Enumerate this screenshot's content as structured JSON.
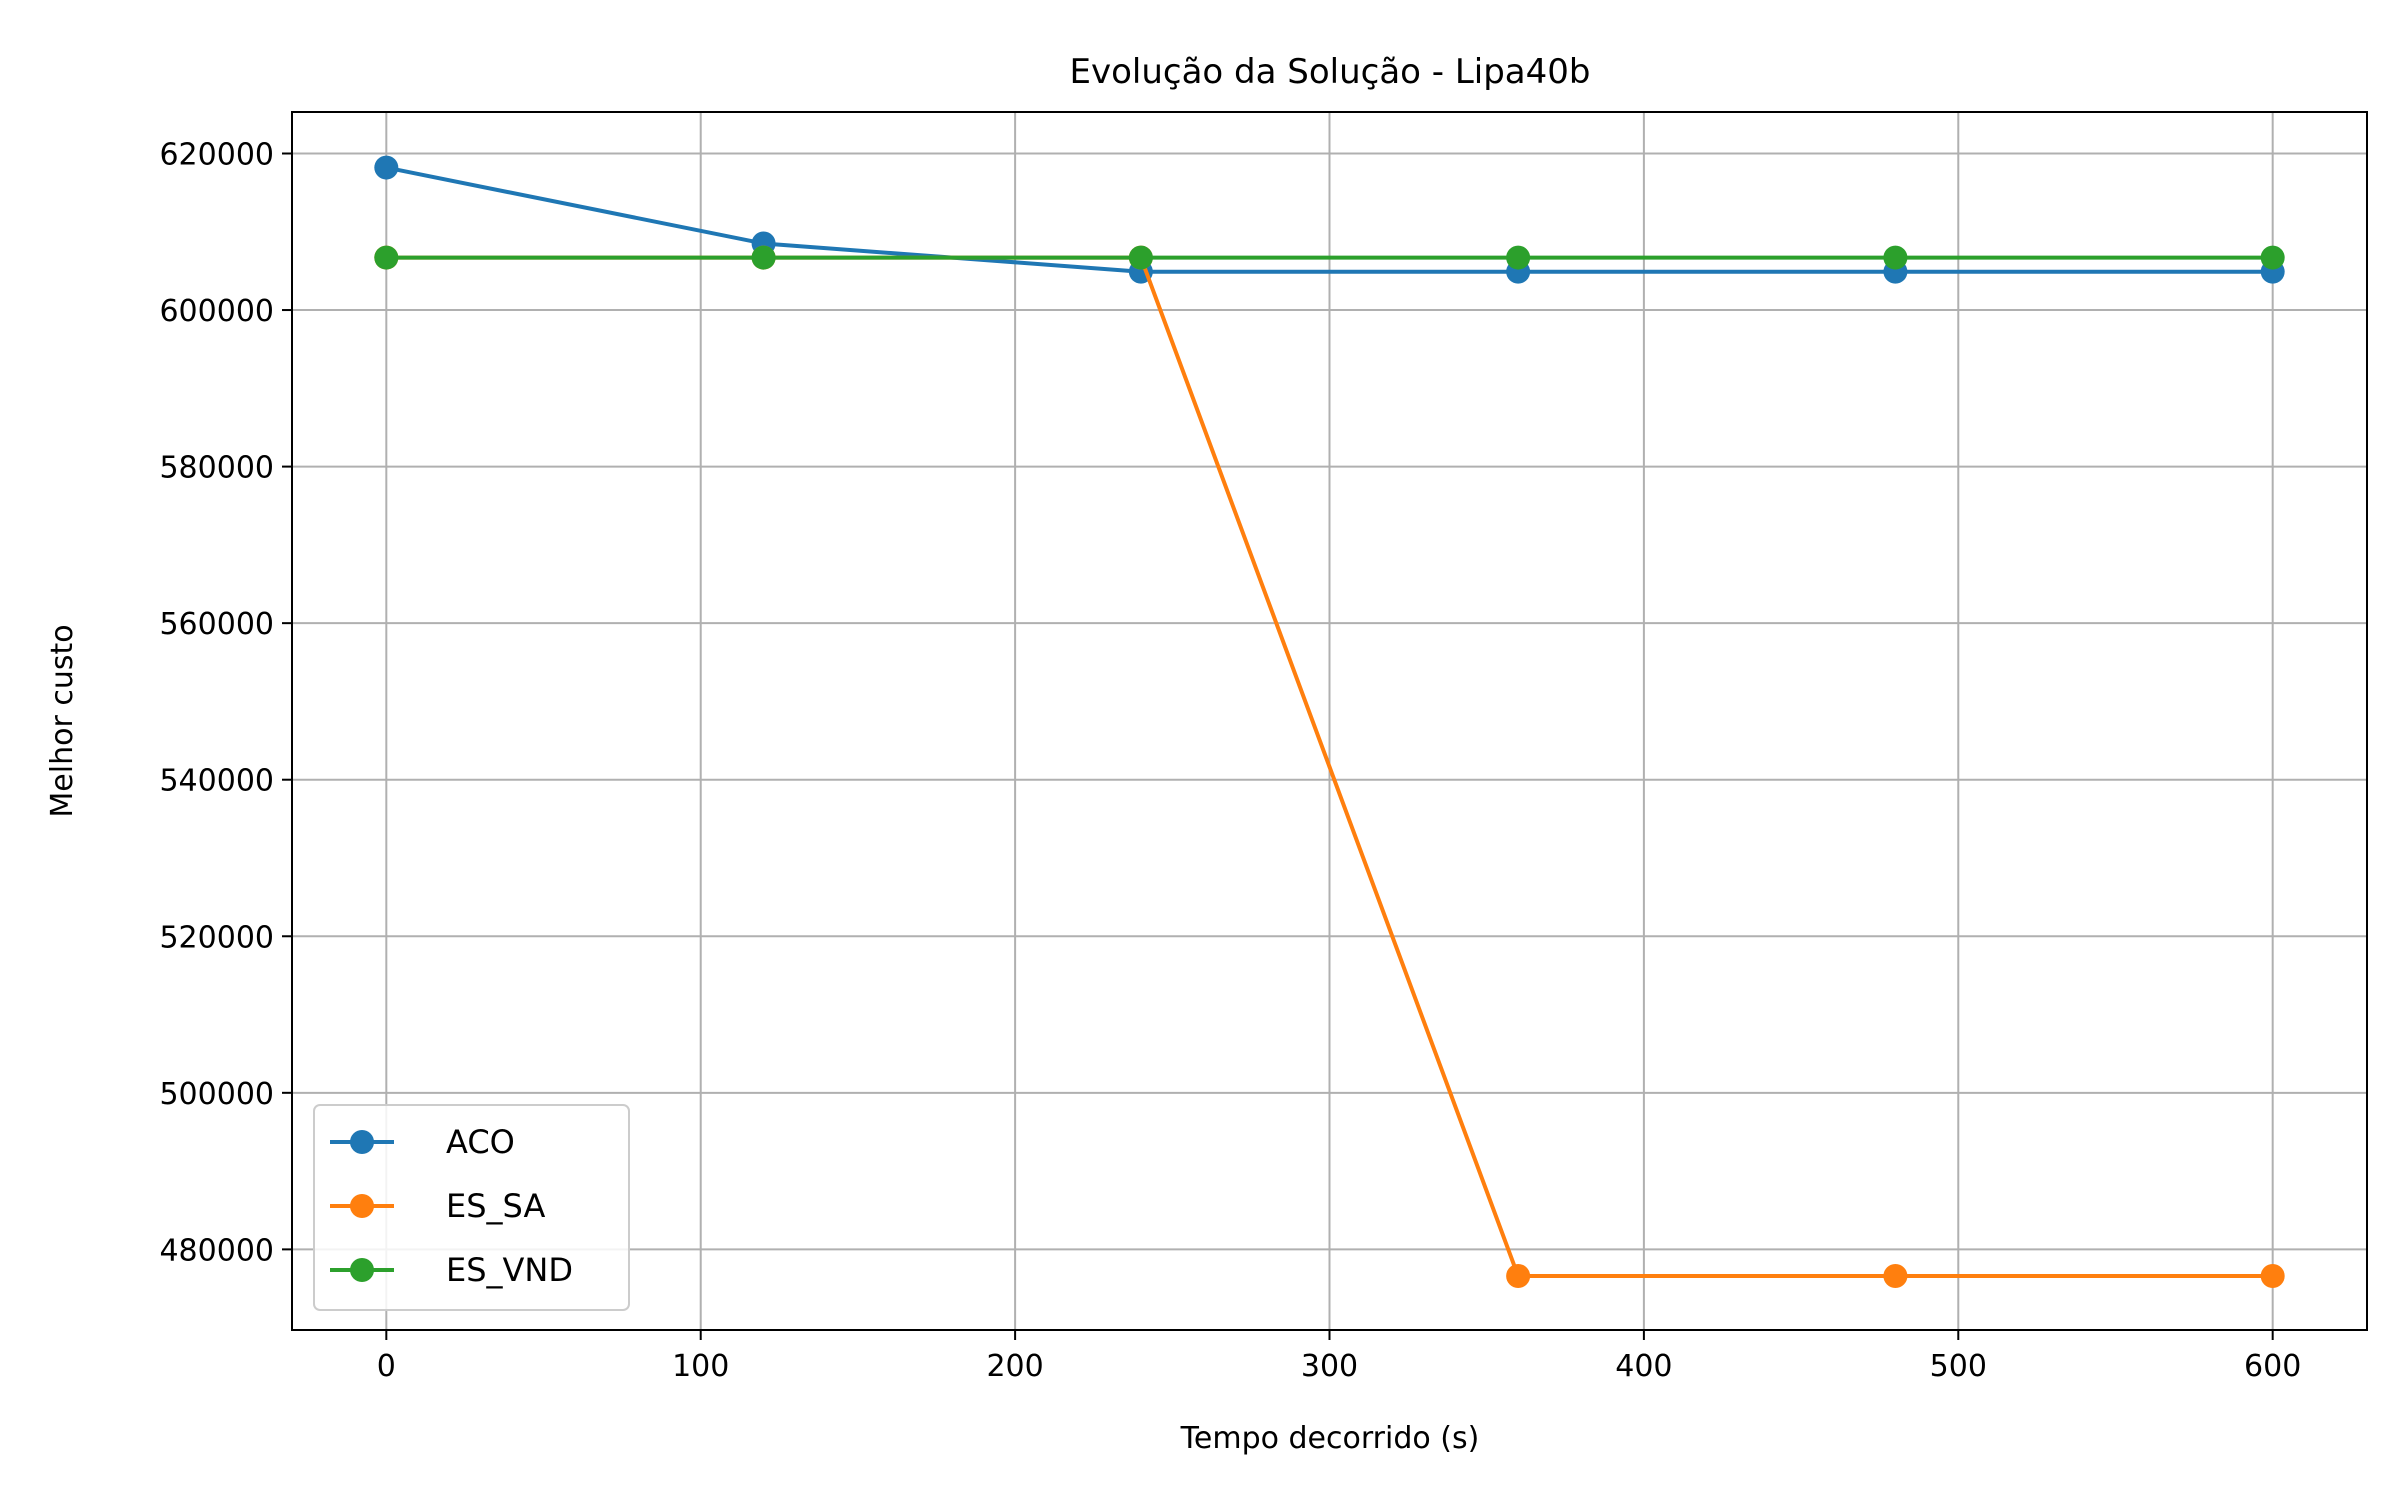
{
  "chart_data": {
    "type": "line",
    "title": "Evolução da Solução - Lipa40b",
    "xlabel": "Tempo decorrido (s)",
    "ylabel": "Melhor custo",
    "x": [
      0,
      120,
      240,
      360,
      480,
      600
    ],
    "xlim": [
      -30,
      630
    ],
    "ylim": [
      469700,
      625300
    ],
    "x_ticks": [
      0,
      100,
      200,
      300,
      400,
      500,
      600
    ],
    "x_tick_labels": [
      "0",
      "100",
      "200",
      "300",
      "400",
      "500",
      "600"
    ],
    "y_ticks": [
      480000,
      500000,
      520000,
      540000,
      560000,
      580000,
      600000,
      620000
    ],
    "y_tick_labels": [
      "480000",
      "500000",
      "520000",
      "540000",
      "560000",
      "580000",
      "600000",
      "620000"
    ],
    "grid": true,
    "legend_position": "lower-left",
    "series": [
      {
        "name": "ACO",
        "color": "#1f77b4",
        "values": [
          618200,
          608500,
          604900,
          604900,
          604900,
          604900
        ]
      },
      {
        "name": "ES_SA",
        "color": "#ff7f0e",
        "values": [
          606700,
          606700,
          606700,
          476600,
          476600,
          476600
        ]
      },
      {
        "name": "ES_VND",
        "color": "#2ca02c",
        "values": [
          606700,
          606700,
          606700,
          606700,
          606700,
          606700
        ]
      }
    ]
  }
}
